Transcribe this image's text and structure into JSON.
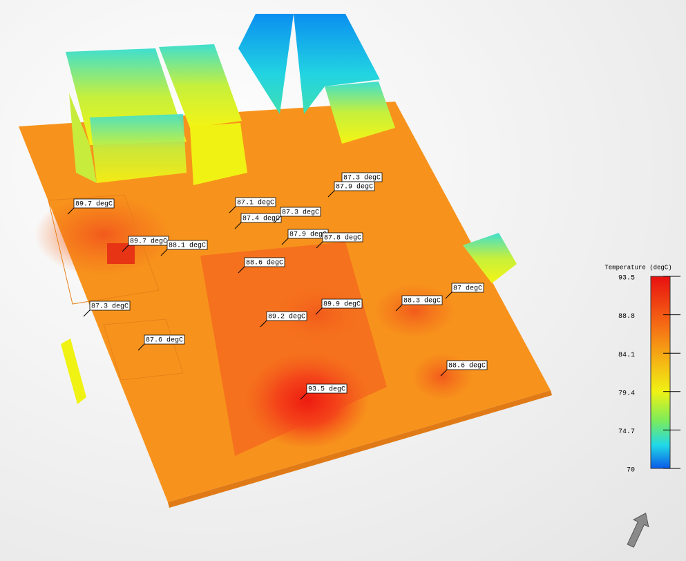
{
  "legend": {
    "title": "Temperature (degC)",
    "ticks": [
      93.5,
      88.8,
      84.1,
      79.4,
      74.7,
      70
    ]
  },
  "probes": [
    {
      "label": "89.7 degC"
    },
    {
      "label": "89.7 degC"
    },
    {
      "label": "88.1 degC"
    },
    {
      "label": "87.1 degC"
    },
    {
      "label": "87.4 degC"
    },
    {
      "label": "87.3 degC"
    },
    {
      "label": "87.3 degC"
    },
    {
      "label": "87.9 degC"
    },
    {
      "label": "87.9 degC"
    },
    {
      "label": "87.8 degC"
    },
    {
      "label": "88.6 degC"
    },
    {
      "label": "87.3 degC"
    },
    {
      "label": "89.9 degC"
    },
    {
      "label": "89.2 degC"
    },
    {
      "label": "88.3 degC"
    },
    {
      "label": "87 degC"
    },
    {
      "label": "87.6 degC"
    },
    {
      "label": "88.6 degC"
    },
    {
      "label": "93.5 degC"
    }
  ]
}
